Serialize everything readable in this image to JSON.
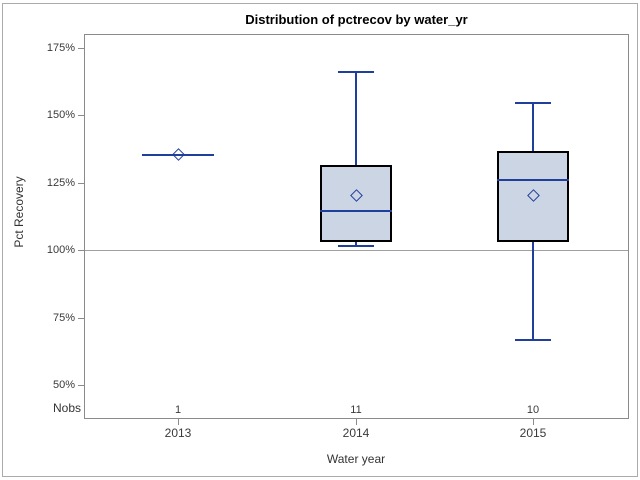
{
  "chart_data": {
    "type": "box",
    "title": "Distribution of pctrecov by water_yr",
    "xlabel": "Water year",
    "ylabel": "Pct Recovery",
    "y_axis": {
      "ticks": [
        175,
        150,
        125,
        100,
        75,
        50
      ],
      "tick_labels": [
        "175%",
        "150%",
        "125%",
        "100%",
        "75%",
        "50%"
      ],
      "range_top": 180,
      "range_bottom": 38
    },
    "x_axis": {
      "categories": [
        "2013",
        "2014",
        "2015"
      ]
    },
    "reference_line": {
      "value": 100
    },
    "nobs_row": {
      "label": "Nobs",
      "values": [
        "1",
        "11",
        "10"
      ]
    },
    "boxes": [
      {
        "category": "2013",
        "nobs": 1,
        "min": 135.5,
        "q1": 135.5,
        "median": 135.5,
        "q3": 135.5,
        "max": 135.5,
        "mean": 135.5
      },
      {
        "category": "2014",
        "nobs": 11,
        "min": 101.5,
        "q1": 103.3,
        "median": 114.8,
        "q3": 131.5,
        "max": 166,
        "mean": 120.5
      },
      {
        "category": "2015",
        "nobs": 10,
        "min": 66.8,
        "q1": 103,
        "median": 126,
        "q3": 137,
        "max": 154.5,
        "mean": 120.3
      }
    ],
    "colors": {
      "box_fill": "#ccd5e4",
      "box_border": "#000000",
      "line": "#1f3f9b",
      "frame": "#8b8b8b",
      "reference": "#a0a0a0",
      "tick_text": "#3a3a3a",
      "title_text": "#000000"
    },
    "legend": null,
    "grid": false
  }
}
